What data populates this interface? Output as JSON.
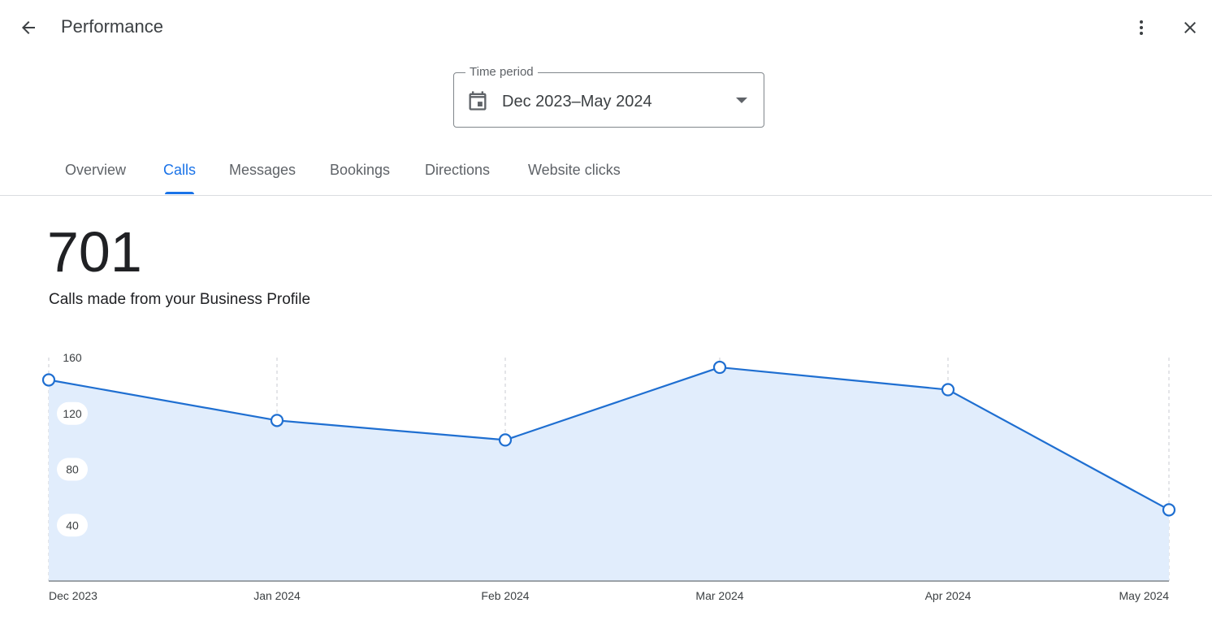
{
  "header": {
    "title": "Performance",
    "back_icon": "arrow-back-icon",
    "more_icon": "more-vert-icon",
    "close_icon": "close-icon"
  },
  "time_period": {
    "label": "Time period",
    "value": "Dec 2023–May 2024"
  },
  "tabs": [
    {
      "label": "Overview",
      "active": false
    },
    {
      "label": "Calls",
      "active": true
    },
    {
      "label": "Messages",
      "active": false
    },
    {
      "label": "Bookings",
      "active": false
    },
    {
      "label": "Directions",
      "active": false
    },
    {
      "label": "Website clicks",
      "active": false
    }
  ],
  "summary": {
    "total": "701",
    "description": "Calls made from your Business Profile"
  },
  "colors": {
    "accent": "#1a73e8",
    "line": "#1f6fd1",
    "area_fill": "#e1edfc"
  },
  "chart_data": {
    "type": "area",
    "categories": [
      "Dec 2023",
      "Jan 2024",
      "Feb 2024",
      "Mar 2024",
      "Apr 2024",
      "May 2024"
    ],
    "values": [
      144,
      115,
      101,
      153,
      137,
      51
    ],
    "yticks": [
      "40",
      "80",
      "120",
      "160"
    ],
    "ylim": [
      0,
      160
    ],
    "grid": "vertical dashed",
    "title": "",
    "xlabel": "",
    "ylabel": ""
  }
}
